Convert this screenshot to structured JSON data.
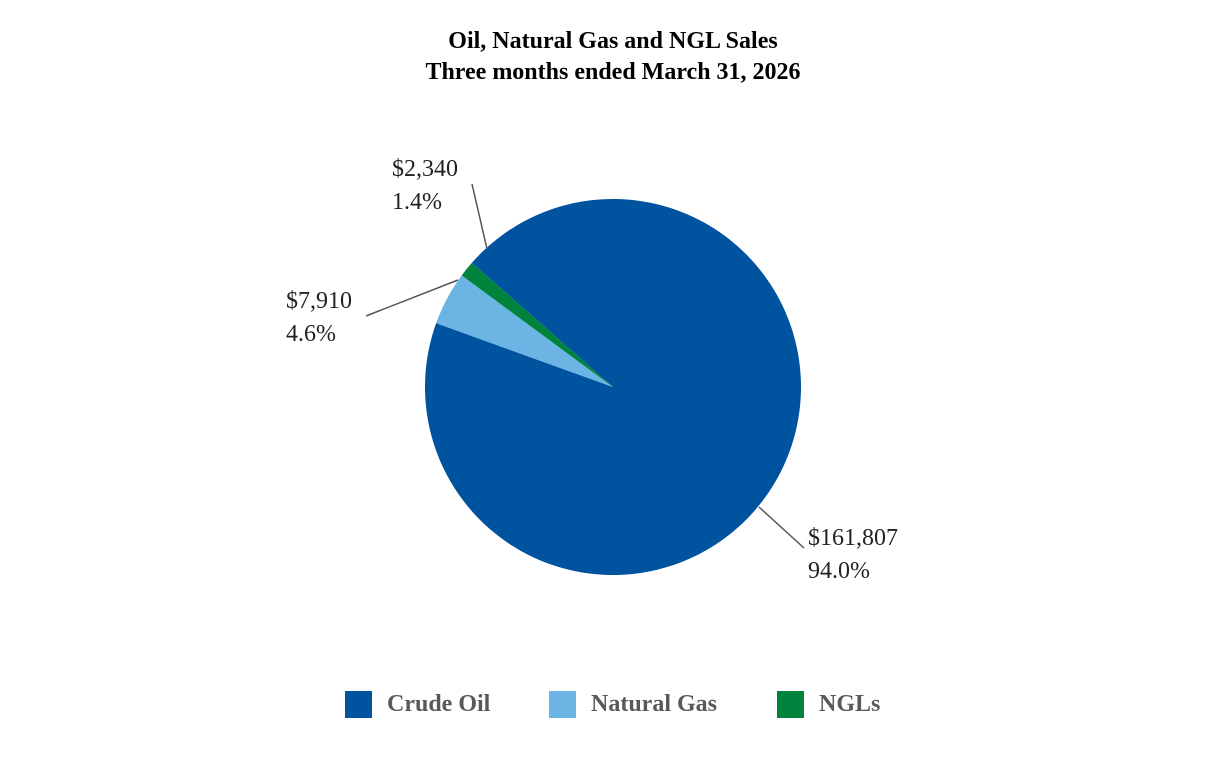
{
  "chart_data": {
    "type": "pie",
    "title": "Oil, Natural Gas and NGL Sales",
    "subtitle": "Three months ended March 31, 2026",
    "slices": [
      {
        "name": "Crude Oil",
        "value": 161807,
        "value_label": "$161,807",
        "percent_label": "94.0%",
        "color": "#00539F"
      },
      {
        "name": "Natural Gas",
        "value": 7910,
        "value_label": "$7,910",
        "percent_label": "4.6%",
        "color": "#6CB4E4"
      },
      {
        "name": "NGLs",
        "value": 2340,
        "value_label": "$2,340",
        "percent_label": "1.4%",
        "color": "#00843D"
      }
    ],
    "legend_position": "bottom"
  }
}
